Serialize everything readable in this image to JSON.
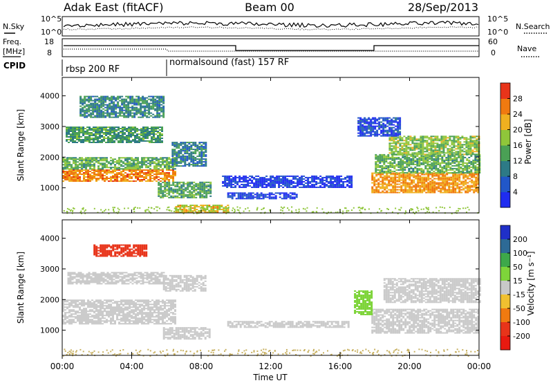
{
  "header": {
    "title": "Adak East (fitACF)",
    "beam": "Beam 00",
    "date": "28/Sep/2013"
  },
  "noise": {
    "left_label": "N.Sky",
    "right_label": "N.Search",
    "tick_top": "10^5",
    "tick_bottom": "10^0"
  },
  "freq": {
    "left_label": "Freq.",
    "unit": "[MHz]",
    "right_label": "Nave",
    "left_ticks": [
      "18",
      "8"
    ],
    "right_ticks": [
      "60",
      "0"
    ]
  },
  "cpid": {
    "label": "CPID",
    "segments": [
      {
        "name": "rbsp 200 RF",
        "start_h": 0,
        "end_h": 6
      },
      {
        "name": "normalsound (fast) 157 RF",
        "start_h": 6,
        "end_h": 24
      }
    ]
  },
  "chart_data": [
    {
      "type": "heatmap",
      "panel": "power",
      "ylabel": "Slant Range [km]",
      "xlabel": "Time UT",
      "xlim": [
        0,
        24
      ],
      "ylim": [
        180,
        4600
      ],
      "y_ticks": [
        1000,
        2000,
        3000,
        4000
      ],
      "x_ticks": [
        "00:00",
        "04:00",
        "08:00",
        "12:00",
        "16:00",
        "20:00",
        "00:00"
      ],
      "colorbar": {
        "label": "Power [dB]",
        "ticks": [
          "4",
          "8",
          "12",
          "16",
          "20",
          "24",
          "28"
        ],
        "range": [
          0,
          32
        ],
        "colors": [
          "#1f2cf0",
          "#2157c8",
          "#2d7a86",
          "#4aa055",
          "#8fc63a",
          "#f0b020",
          "#f07a10",
          "#e8341a"
        ]
      },
      "regions": [
        {
          "t": [
            0.0,
            6.5
          ],
          "r": [
            1200,
            1600
          ],
          "v": 25
        },
        {
          "t": [
            0.0,
            6.5
          ],
          "r": [
            1600,
            2000
          ],
          "v": 15
        },
        {
          "t": [
            6.3,
            8.3
          ],
          "r": [
            1700,
            2500
          ],
          "v": 10
        },
        {
          "t": [
            0.2,
            5.8
          ],
          "r": [
            2500,
            3000
          ],
          "v": 13
        },
        {
          "t": [
            1.0,
            5.8
          ],
          "r": [
            3300,
            4000
          ],
          "v": 11
        },
        {
          "t": [
            5.5,
            8.5
          ],
          "r": [
            700,
            1200
          ],
          "v": 14
        },
        {
          "t": [
            6.5,
            9.5
          ],
          "r": [
            200,
            450
          ],
          "v": 21
        },
        {
          "t": [
            9.2,
            16.7
          ],
          "r": [
            1000,
            1400
          ],
          "v": 3
        },
        {
          "t": [
            9.5,
            13.5
          ],
          "r": [
            650,
            850
          ],
          "v": 4
        },
        {
          "t": [
            17.8,
            24.0
          ],
          "r": [
            850,
            1500
          ],
          "v": 24
        },
        {
          "t": [
            18.0,
            24.0
          ],
          "r": [
            1500,
            2100
          ],
          "v": 15
        },
        {
          "t": [
            18.8,
            24.0
          ],
          "r": [
            2100,
            2700
          ],
          "v": 17
        },
        {
          "t": [
            17.0,
            19.5
          ],
          "r": [
            2700,
            3300
          ],
          "v": 5
        }
      ]
    },
    {
      "type": "heatmap",
      "panel": "velocity",
      "ylabel": "Slant Range [km]",
      "xlabel": "Time UT",
      "xlim": [
        0,
        24
      ],
      "ylim": [
        180,
        4600
      ],
      "y_ticks": [
        1000,
        2000,
        3000,
        4000
      ],
      "x_ticks": [
        "00:00",
        "04:00",
        "08:00",
        "12:00",
        "16:00",
        "20:00",
        "00:00"
      ],
      "colorbar": {
        "label": "Velocity [m s⁻¹]",
        "ticks": [
          "200",
          "100",
          "50",
          "15",
          "-15",
          "-50",
          "-100",
          "-200"
        ],
        "range": [
          -250,
          250
        ],
        "colors": [
          "#2030c8",
          "#2d6a96",
          "#3da84a",
          "#7ed43a",
          "#c8c8c8",
          "#f0c030",
          "#f07a10",
          "#e8341a",
          "#e81a10"
        ]
      },
      "regions": [
        {
          "t": [
            0.0,
            6.5
          ],
          "r": [
            1200,
            2000
          ],
          "v": 0
        },
        {
          "t": [
            0.3,
            5.8
          ],
          "r": [
            2500,
            2900
          ],
          "v": 0
        },
        {
          "t": [
            5.8,
            8.3
          ],
          "r": [
            2300,
            2800
          ],
          "v": 0
        },
        {
          "t": [
            1.8,
            4.8
          ],
          "r": [
            3400,
            3800
          ],
          "v": -180
        },
        {
          "t": [
            5.8,
            8.5
          ],
          "r": [
            700,
            1100
          ],
          "v": 0
        },
        {
          "t": [
            17.8,
            24.0
          ],
          "r": [
            900,
            1700
          ],
          "v": 0
        },
        {
          "t": [
            18.5,
            24.0
          ],
          "r": [
            1900,
            2700
          ],
          "v": 0
        },
        {
          "t": [
            16.8,
            17.8
          ],
          "r": [
            1500,
            2300
          ],
          "v": 60
        },
        {
          "t": [
            9.5,
            16.5
          ],
          "r": [
            1100,
            1300
          ],
          "v": 0
        }
      ]
    }
  ]
}
